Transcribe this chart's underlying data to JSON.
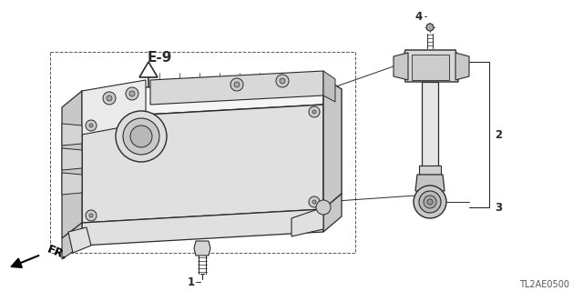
{
  "bg_color": "#ffffff",
  "lc": "#2a2a2a",
  "dc": "#555555",
  "fc_light": "#f5f5f5",
  "fc_mid": "#e0e0e0",
  "fc_dark": "#c8c8c8",
  "part_ref": "TL2AE0500",
  "label_e9": "E-9",
  "fr_label": "FR.",
  "labels": [
    "1",
    "2",
    "3",
    "4"
  ],
  "figsize": [
    6.4,
    3.2
  ],
  "dpi": 100
}
